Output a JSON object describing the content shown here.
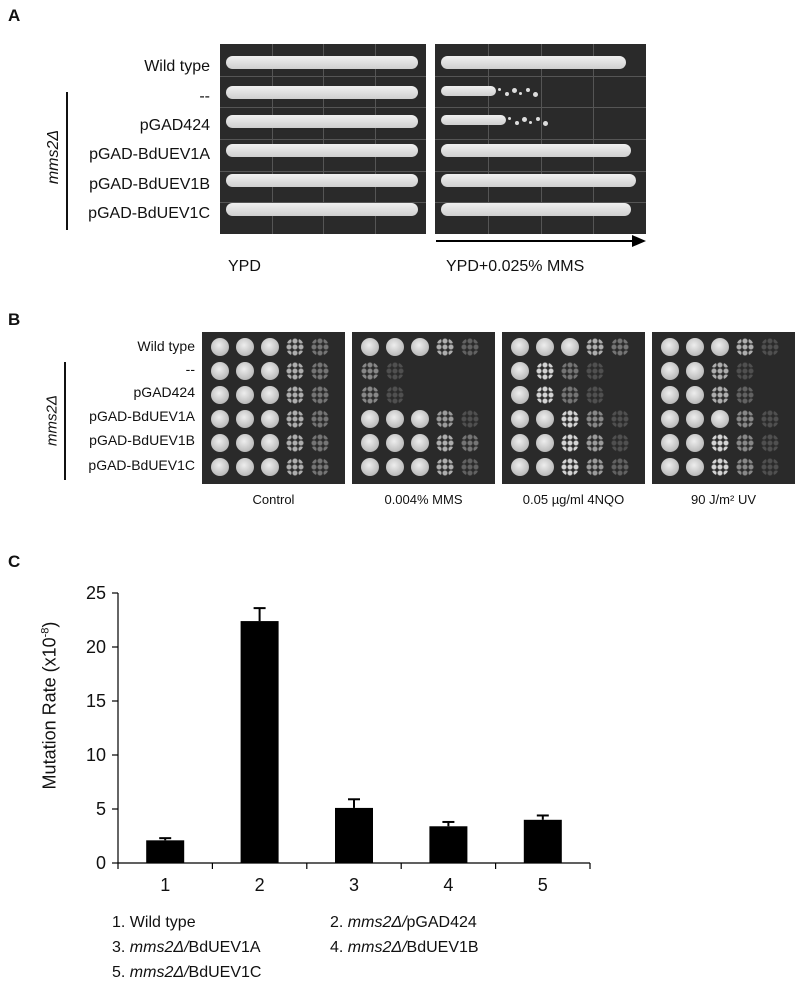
{
  "panel_a": {
    "letter": "A",
    "rows": [
      {
        "label": "Wild type"
      },
      {
        "label": "--"
      },
      {
        "label": "pGAD424"
      },
      {
        "label": "pGAD-BdUEV1A"
      },
      {
        "label": "pGAD-BdUEV1B"
      },
      {
        "label": "pGAD-BdUEV1C"
      }
    ],
    "group_label": "mms2Δ",
    "captions": [
      "YPD",
      "YPD+0.025% MMS"
    ]
  },
  "panel_b": {
    "letter": "B",
    "rows": [
      {
        "label": "Wild type"
      },
      {
        "label": "--"
      },
      {
        "label": "pGAD424"
      },
      {
        "label": "pGAD-BdUEV1A"
      },
      {
        "label": "pGAD-BdUEV1B"
      },
      {
        "label": "pGAD-BdUEV1C"
      }
    ],
    "group_label": "mms2Δ",
    "captions": [
      "Control",
      "0.004% MMS",
      "0.05 µg/ml 4NQO",
      "90 J/m² UV"
    ]
  },
  "panel_c": {
    "letter": "C",
    "legend": [
      {
        "num": "1. ",
        "italic": "",
        "rest": "Wild type"
      },
      {
        "num": "2. ",
        "italic": "mms2Δ/",
        "rest": "pGAD424"
      },
      {
        "num": "3. ",
        "italic": "mms2Δ/",
        "rest": "BdUEV1A"
      },
      {
        "num": "4. ",
        "italic": "mms2Δ/",
        "rest": "BdUEV1B"
      },
      {
        "num": "5. ",
        "italic": "mms2Δ/",
        "rest": "BdUEV1C"
      }
    ]
  },
  "chart_data": {
    "type": "bar",
    "categories": [
      "1",
      "2",
      "3",
      "4",
      "5"
    ],
    "values": [
      2.1,
      22.4,
      5.1,
      3.4,
      4.0
    ],
    "errors": [
      0.2,
      1.2,
      0.8,
      0.4,
      0.4
    ],
    "ylabel_main": "Mutation Rate (x10",
    "ylabel_sup": "-8",
    "ylabel_end": ")",
    "ylim": [
      0,
      25
    ],
    "yticks": [
      0,
      5,
      10,
      15,
      20,
      25
    ],
    "grid": false,
    "bar_color": "#000000"
  }
}
